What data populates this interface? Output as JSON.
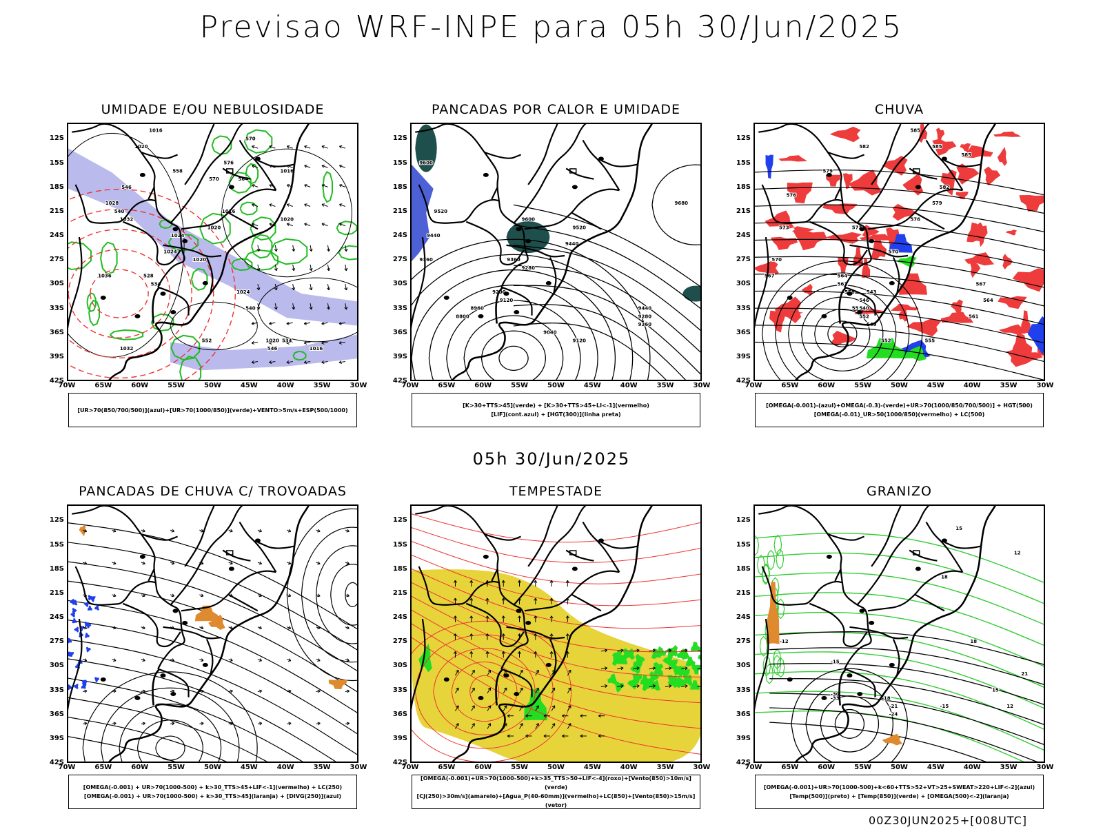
{
  "title": "Previsao WRF-INPE  para 05h 30/Jun/2025",
  "middle_date": "05h 30/Jun/2025",
  "footer": "00Z30JUN2025+[008UTC]",
  "axes": {
    "lat_labels": [
      "12S",
      "15S",
      "18S",
      "21S",
      "24S",
      "27S",
      "30S",
      "33S",
      "36S",
      "39S",
      "42S"
    ],
    "lon_labels": [
      "70W",
      "65W",
      "60W",
      "55W",
      "50W",
      "45W",
      "40W",
      "35W",
      "30W"
    ]
  },
  "colors": {
    "contour_black": "#000000",
    "humidity_blue": "#a9a9e8",
    "humidity_green": "#22bb22",
    "red_dashed": "#ee3333",
    "teal_shade": "#1f4f4c",
    "rain_red": "#ee3b3b",
    "rain_blue": "#2040ee",
    "rain_green": "#22dd22",
    "orange": "#e08a30",
    "yellow": "#e6d43a",
    "storm_green": "#22dd22",
    "hail_green": "#33cc33"
  },
  "panels": [
    {
      "title": "UMIDADE E/OU NEBULOSIDADE",
      "legend": [
        "[UR>70(850/700/500)](azul)+[UR>70(1000/850)](verde)+VENTO>5m/s+ESP(500/1000)"
      ],
      "labels": [
        "1016",
        "1020",
        "1024",
        "1028",
        "1032",
        "1016",
        "1020",
        "1024",
        "1020",
        "1016",
        "1020",
        "1032",
        "1036",
        "1024",
        "1020",
        "1016",
        "570",
        "564",
        "558",
        "546",
        "540",
        "534",
        "528",
        "552",
        "546",
        "540",
        "534",
        "576",
        "570"
      ]
    },
    {
      "title": "PANCADAS POR CALOR E UMIDADE",
      "legend": [
        "[K>30+TTS>45](verde) + [K>30+TTS>45+LI<-1](vermelho)",
        "[LIF](cont.azul) + [HGT(300)](linha preta)"
      ],
      "labels": [
        "9600",
        "9520",
        "9440",
        "9360",
        "9680",
        "9600",
        "9520",
        "9440",
        "9360",
        "9280",
        "9200",
        "9120",
        "8960",
        "8800",
        "9040",
        "9120",
        "9280",
        "9360",
        "9440"
      ]
    },
    {
      "title": "CHUVA",
      "legend": [
        "[OMEGA(-0.001)-(azul)+OMEGA(-0.3)-(verde)+UR>70(1000/850/700/500)] + HGT(500)",
        "[OMEGA(-0.01)_UR>50(1000/850)(vermelho) + LC(500)"
      ],
      "labels": [
        "585",
        "585",
        "582",
        "579",
        "576",
        "573",
        "570",
        "567",
        "564",
        "561",
        "558",
        "555",
        "552",
        "549",
        "546",
        "543",
        "540",
        "585",
        "582",
        "579",
        "576",
        "573",
        "570",
        "567",
        "564",
        "561",
        "555",
        "552"
      ]
    },
    {
      "title": "PANCADAS DE CHUVA C/ TROVOADAS",
      "legend": [
        "[OMEGA(-0.001) + UR>70(1000-500) + k>30_TTS>45+LIF<-1](vermelho) + LC(250)",
        "[OMEGA(-0.001) + UR>70(1000-500) + k>30_TTS>45](laranja) + [DIVG(250)](azul)"
      ],
      "labels": []
    },
    {
      "title": "TEMPESTADE",
      "legend": [
        "[OMEGA(-0.001)+UR>70(1000-500)+k>35_TTS>50+LIF<-4](roxo)+[Vento(850)>10m/s](verde)",
        "[CJ(250)>30m/s](amarelo)+[Agua_P(40-60mm)](vermelho)+LC(850)+[Vento(850)>15m/s](vetor)"
      ],
      "labels": []
    },
    {
      "title": "GRANIZO",
      "legend": [
        "[OMEGA(-0.001)+UR>70(1000-500)+k<60+TTS>52+VT>25+SWEAT>220+LIF<-2](azul)",
        "[Temp(500)](preto) + [Temp(850)](verde) + [OMEGA(500)<-2](laranja)"
      ],
      "labels": [
        "-12",
        "-15",
        "-18",
        "-21",
        "-24",
        "-30",
        "-33",
        "-15",
        "15",
        "18",
        "12",
        "15",
        "18",
        "21",
        "15",
        "12"
      ]
    }
  ]
}
